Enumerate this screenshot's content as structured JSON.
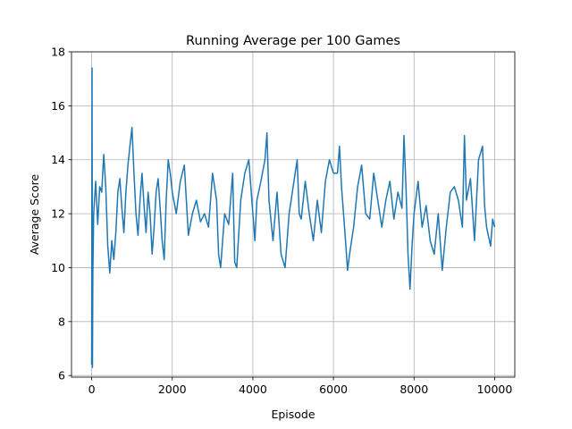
{
  "chart_data": {
    "type": "line",
    "title": "Running Average per 100 Games",
    "xlabel": "Episode",
    "ylabel": "Average Score",
    "color": "#1f77b4",
    "grid": true,
    "xlim": [
      -500,
      10500
    ],
    "ylim": [
      5.94,
      18
    ],
    "xticks": [
      0,
      2000,
      4000,
      6000,
      8000,
      10000
    ],
    "yticks": [
      6,
      8,
      10,
      12,
      14,
      16,
      18
    ],
    "x": [
      0,
      10,
      20,
      30,
      50,
      100,
      150,
      200,
      250,
      300,
      350,
      400,
      450,
      500,
      550,
      600,
      650,
      700,
      750,
      800,
      850,
      900,
      950,
      1000,
      1050,
      1100,
      1150,
      1200,
      1250,
      1300,
      1350,
      1400,
      1450,
      1500,
      1550,
      1600,
      1650,
      1700,
      1750,
      1800,
      1850,
      1900,
      1950,
      2000,
      2100,
      2200,
      2300,
      2400,
      2500,
      2600,
      2700,
      2800,
      2900,
      3000,
      3100,
      3150,
      3200,
      3300,
      3400,
      3500,
      3550,
      3600,
      3700,
      3800,
      3900,
      4000,
      4050,
      4100,
      4200,
      4300,
      4350,
      4400,
      4500,
      4600,
      4700,
      4800,
      4900,
      5000,
      5100,
      5150,
      5200,
      5300,
      5400,
      5500,
      5600,
      5700,
      5800,
      5900,
      6000,
      6100,
      6150,
      6200,
      6300,
      6350,
      6400,
      6500,
      6600,
      6700,
      6800,
      6900,
      7000,
      7100,
      7200,
      7300,
      7400,
      7500,
      7600,
      7700,
      7750,
      7800,
      7850,
      7900,
      7950,
      8000,
      8100,
      8200,
      8300,
      8400,
      8500,
      8600,
      8700,
      8800,
      8900,
      9000,
      9100,
      9200,
      9250,
      9300,
      9400,
      9500,
      9600,
      9700,
      9750,
      9800,
      9900,
      9950,
      10000
    ],
    "values": [
      6.4,
      17.4,
      6.3,
      9.8,
      12.0,
      13.2,
      11.6,
      13.0,
      12.8,
      14.2,
      13.0,
      10.8,
      9.8,
      11.0,
      10.3,
      11.3,
      12.8,
      13.3,
      12.2,
      11.3,
      12.8,
      13.8,
      14.5,
      15.2,
      13.5,
      12.0,
      11.2,
      12.5,
      13.5,
      12.3,
      11.3,
      12.8,
      12.0,
      10.5,
      11.5,
      12.8,
      13.3,
      12.2,
      11.0,
      10.3,
      12.5,
      14.0,
      13.5,
      12.8,
      12.0,
      13.2,
      13.8,
      11.2,
      12.0,
      12.5,
      11.7,
      12.0,
      11.5,
      13.5,
      12.5,
      10.5,
      10.0,
      12.0,
      11.6,
      13.5,
      10.2,
      10.0,
      12.5,
      13.5,
      14.0,
      12.0,
      11.0,
      12.5,
      13.2,
      14.0,
      15.0,
      12.5,
      11.0,
      12.8,
      10.5,
      10.0,
      12.0,
      13.0,
      14.0,
      12.0,
      11.8,
      13.2,
      12.0,
      11.0,
      12.5,
      11.3,
      13.2,
      14.0,
      13.5,
      13.5,
      14.5,
      13.0,
      11.0,
      9.9,
      10.5,
      11.5,
      13.0,
      13.8,
      12.0,
      11.8,
      13.5,
      12.5,
      11.5,
      12.5,
      13.2,
      11.8,
      12.8,
      12.2,
      14.9,
      13.0,
      10.5,
      9.2,
      10.8,
      12.0,
      13.2,
      11.5,
      12.3,
      11.0,
      10.5,
      12.0,
      9.9,
      11.5,
      12.8,
      13.0,
      12.5,
      11.5,
      14.9,
      12.5,
      13.3,
      11.0,
      14.0,
      14.5,
      12.3,
      11.5,
      10.8,
      11.8,
      11.5
    ]
  }
}
